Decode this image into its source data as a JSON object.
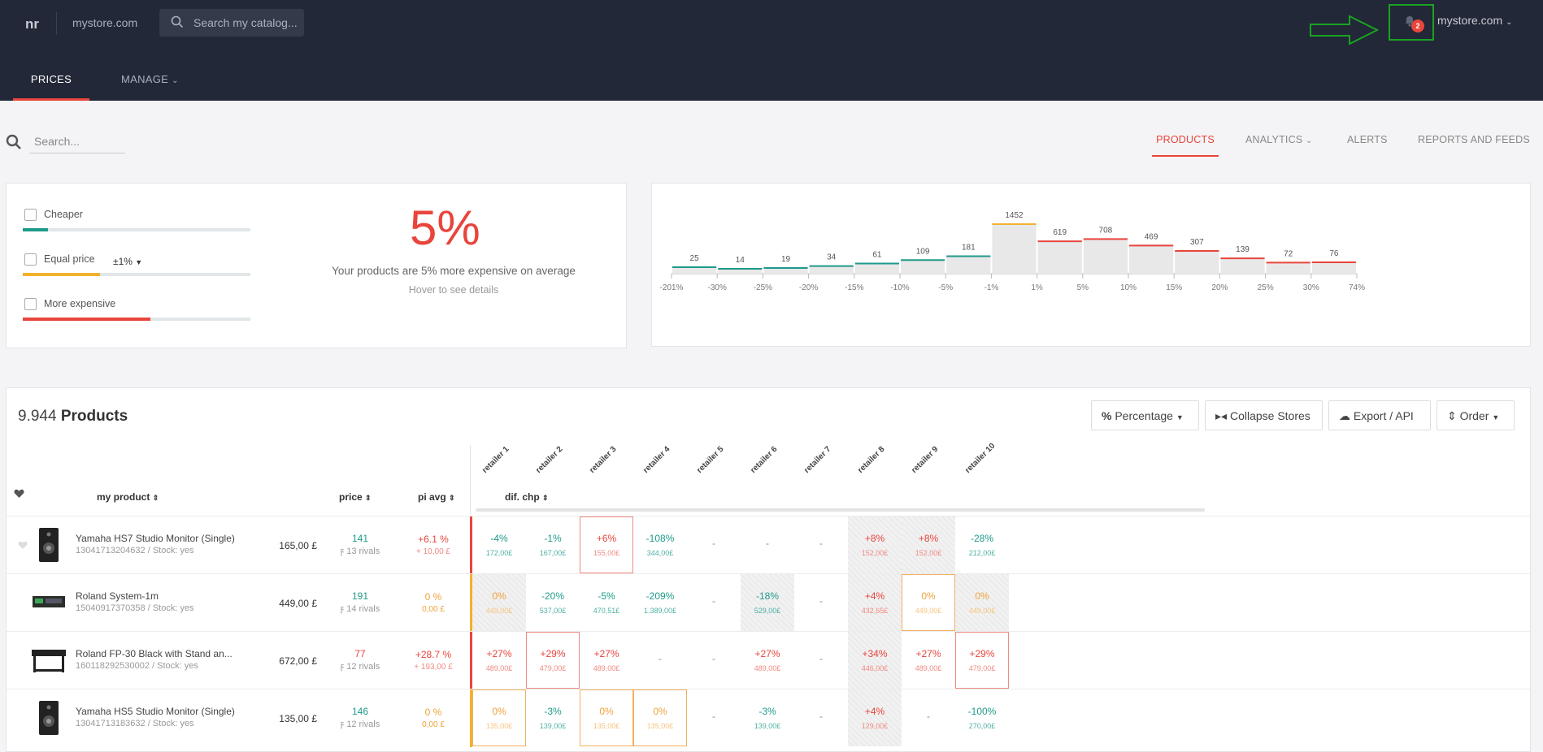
{
  "header": {
    "logo": "nr",
    "store": "mystore.com",
    "search_placeholder": "Search my catalog...",
    "notif_count": "2",
    "account": "mystore.com",
    "tabs": [
      {
        "label": "PRICES"
      },
      {
        "label": "MANAGE"
      }
    ]
  },
  "search": {
    "placeholder": "Search..."
  },
  "subnav": [
    "PRODUCTS",
    "ANALYTICS",
    "ALERTS",
    "REPORTS AND FEEDS"
  ],
  "filters": {
    "cheaper": "Cheaper",
    "equal": "Equal price",
    "tolerance": "±1%",
    "expensive": "More expensive",
    "cheaper_fill": 0.11,
    "equal_fill": 0.34,
    "expensive_fill": 0.56
  },
  "summary": {
    "pct": "5%",
    "text": "Your products are 5% more expensive on average",
    "hint": "Hover to see details"
  },
  "chart_data": {
    "type": "bar",
    "categories": [
      "-201% to -30%",
      "-30% to -25%",
      "-25% to -20%",
      "-20% to -15%",
      "-15% to -10%",
      "-10% to -5%",
      "-5% to -1%",
      "-1% to 1%",
      "1% to 5%",
      "5% to 10%",
      "10% to 15%",
      "15% to 20%",
      "20% to 25%",
      "25% to 30%",
      "30% to 74%"
    ],
    "values": [
      25,
      14,
      19,
      34,
      61,
      109,
      181,
      1452,
      619,
      708,
      469,
      307,
      139,
      72,
      76
    ],
    "tick_labels": [
      "-201%",
      "-30%",
      "-25%",
      "-20%",
      "-15%",
      "-10%",
      "-5%",
      "-1%",
      "1%",
      "5%",
      "10%",
      "15%",
      "20%",
      "25%",
      "30%",
      "74%"
    ],
    "colors": {
      "cheaper": "#1e9a8a",
      "equal": "#f2b12d",
      "expensive": "#e8453c"
    }
  },
  "products": {
    "count": "9.944",
    "label": "Products",
    "buttons": [
      "Percentage",
      "Collapse Stores",
      "Export / API",
      "Order"
    ],
    "columns": [
      "my product",
      "price",
      "pi avg",
      "dif. chp"
    ],
    "retailers": [
      "retailer 1",
      "retailer 2",
      "retailer 3",
      "retailer 4",
      "retailer 5",
      "retailer 6",
      "retailer 7",
      "retailer 8",
      "retailer 9",
      "retailer 10"
    ],
    "rows": [
      {
        "name": "Yamaha HS7 Studio Monitor (Single)",
        "sub": "13041713204632 / Stock: yes",
        "price": "165,00 £",
        "piavg": "141",
        "rivals": "13 rivals",
        "dif": "+6.1 %",
        "dif2": "+ 10,00 £",
        "cells": [
          [
            "-4%",
            "172,00£"
          ],
          [
            "-1%",
            "167,00£"
          ],
          [
            "+6%",
            "155,00£"
          ],
          [
            "-108%",
            "344,00£"
          ],
          [
            "-",
            ""
          ],
          [
            "-",
            ""
          ],
          [
            "-",
            ""
          ],
          [
            "+8%",
            "152,00£"
          ],
          [
            "+8%",
            "152,00£"
          ],
          [
            "-28%",
            "212,00£"
          ]
        ]
      },
      {
        "name": "Roland System-1m",
        "sub": "15040917370358 / Stock: yes",
        "price": "449,00 £",
        "piavg": "191",
        "rivals": "14 rivals",
        "dif": "0 %",
        "dif2": "0,00 £",
        "cells": [
          [
            "0%",
            "449,00£"
          ],
          [
            "-20%",
            "537,00£"
          ],
          [
            "-5%",
            "470,51£"
          ],
          [
            "-209%",
            "1.389,00£"
          ],
          [
            "-",
            ""
          ],
          [
            "-18%",
            "529,00£"
          ],
          [
            "-",
            ""
          ],
          [
            "+4%",
            "432,65£"
          ],
          [
            "0%",
            "449,00£"
          ],
          [
            "0%",
            "449,00£"
          ]
        ]
      },
      {
        "name": "Roland FP-30 Black with Stand an...",
        "sub": "160118292530002 / Stock: yes",
        "price": "672,00 £",
        "piavg": "77",
        "rivals": "12 rivals",
        "dif": "+28.7 %",
        "dif2": "+ 193,00 £",
        "cells": [
          [
            "+27%",
            "489,00£"
          ],
          [
            "+29%",
            "479,00£"
          ],
          [
            "+27%",
            "489,00£"
          ],
          [
            "-",
            ""
          ],
          [
            "-",
            ""
          ],
          [
            "+27%",
            "489,00£"
          ],
          [
            "-",
            ""
          ],
          [
            "+34%",
            "446,00£"
          ],
          [
            "+27%",
            "489,00£"
          ],
          [
            "+29%",
            "479,00£"
          ]
        ]
      },
      {
        "name": "Yamaha HS5 Studio Monitor (Single)",
        "sub": "13041713183632 / Stock: yes",
        "price": "135,00 £",
        "piavg": "146",
        "rivals": "12 rivals",
        "dif": "0 %",
        "dif2": "0,00 £",
        "cells": [
          [
            "0%",
            "135,00£"
          ],
          [
            "-3%",
            "139,00£"
          ],
          [
            "0%",
            "135,00£"
          ],
          [
            "0%",
            "135,00£"
          ],
          [
            "-",
            ""
          ],
          [
            "-3%",
            "139,00£"
          ],
          [
            "-",
            ""
          ],
          [
            "+4%",
            "129,00£"
          ],
          [
            "-",
            ""
          ],
          [
            "-100%",
            "270,00£"
          ]
        ]
      }
    ]
  }
}
